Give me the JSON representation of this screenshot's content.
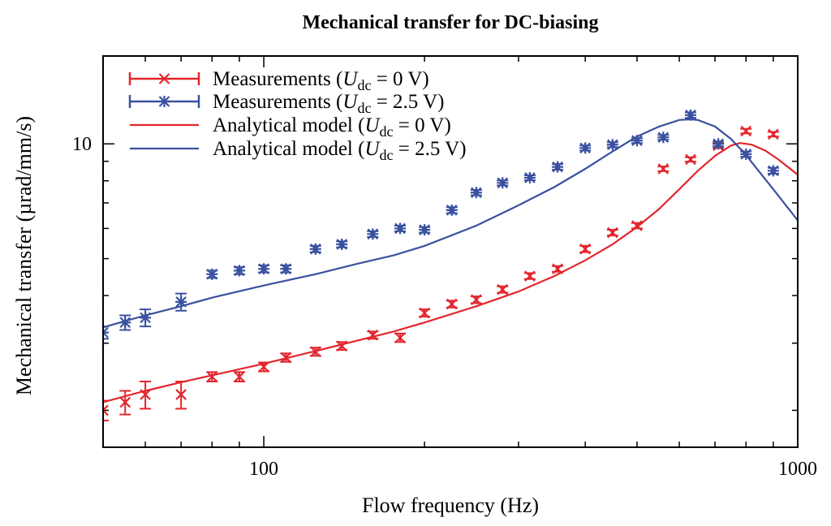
{
  "chart_data": {
    "type": "line",
    "title": "Mechanical transfer for DC-biasing",
    "xlabel": "Flow frequency (Hz)",
    "ylabel": "Mechanical transfer (µrad/mm/s)",
    "x_scale": "log",
    "y_scale": "log",
    "xlim": [
      50,
      1000
    ],
    "ylim": [
      1.6,
      17
    ],
    "x_ticks": [
      {
        "value": 100,
        "label": "100"
      },
      {
        "value": 1000,
        "label": "1000"
      }
    ],
    "y_ticks": [
      {
        "value": 10,
        "label": "10"
      }
    ],
    "legend_position": "top-left",
    "legend_items": [
      {
        "prefix": "Measurements (",
        "var": "U",
        "sub": "dc",
        "suffix": " = 0 V)"
      },
      {
        "prefix": "Measurements (",
        "var": "U",
        "sub": "dc",
        "suffix": " = 2.5 V)"
      },
      {
        "prefix": "Analytical model (",
        "var": "U",
        "sub": "dc",
        "suffix": " = 0 V)"
      },
      {
        "prefix": "Analytical model (",
        "var": "U",
        "sub": "dc",
        "suffix": " = 2.5 V)"
      }
    ],
    "colors": {
      "red": "#e3262c",
      "blue": "#3a51a0"
    },
    "series": [
      {
        "kind": "measurement",
        "marker": "x",
        "color": "#e3262c",
        "x": [
          50,
          55,
          60,
          70,
          80,
          90,
          100,
          110,
          125,
          140,
          160,
          180,
          200,
          225,
          250,
          280,
          315,
          355,
          400,
          450,
          500,
          560,
          630,
          710,
          800,
          900
        ],
        "y": [
          2.0,
          2.1,
          2.2,
          2.2,
          2.45,
          2.45,
          2.6,
          2.75,
          2.85,
          2.95,
          3.15,
          3.1,
          3.6,
          3.8,
          3.9,
          4.15,
          4.5,
          4.7,
          5.3,
          5.85,
          6.1,
          8.6,
          9.1,
          9.9,
          10.8,
          10.6
        ],
        "err": [
          0.12,
          0.15,
          0.18,
          0.18,
          0.07,
          0.07,
          0.07,
          0.07,
          0.07,
          0.07,
          0.07,
          0.08,
          0.08,
          0.08,
          0.08,
          0.08,
          0.08,
          0.08,
          0.1,
          0.1,
          0.1,
          0.12,
          0.12,
          0.15,
          0.15,
          0.15
        ]
      },
      {
        "kind": "measurement",
        "marker": "star",
        "color": "#3a51a0",
        "x": [
          50,
          55,
          60,
          70,
          80,
          90,
          100,
          110,
          125,
          140,
          160,
          180,
          200,
          225,
          250,
          280,
          315,
          355,
          400,
          450,
          500,
          560,
          630,
          710,
          800,
          900
        ],
        "y": [
          3.2,
          3.4,
          3.5,
          3.85,
          4.55,
          4.65,
          4.7,
          4.7,
          5.3,
          5.45,
          5.8,
          6.0,
          5.95,
          6.7,
          7.45,
          7.9,
          8.15,
          8.7,
          9.75,
          9.95,
          10.2,
          10.4,
          11.9,
          10.0,
          9.4,
          8.5
        ],
        "err": [
          0.12,
          0.15,
          0.18,
          0.2,
          0.1,
          0.1,
          0.1,
          0.1,
          0.1,
          0.1,
          0.1,
          0.1,
          0.1,
          0.12,
          0.12,
          0.12,
          0.12,
          0.15,
          0.15,
          0.15,
          0.15,
          0.15,
          0.2,
          0.15,
          0.15,
          0.15
        ]
      },
      {
        "kind": "model",
        "color": "#e3262c",
        "x": [
          50,
          60,
          70,
          80,
          100,
          125,
          150,
          175,
          200,
          250,
          300,
          350,
          400,
          450,
          500,
          550,
          600,
          650,
          700,
          750,
          780,
          820,
          870,
          920,
          1000
        ],
        "y": [
          2.1,
          2.25,
          2.37,
          2.47,
          2.65,
          2.86,
          3.05,
          3.22,
          3.4,
          3.75,
          4.1,
          4.5,
          4.95,
          5.45,
          6.05,
          6.75,
          7.6,
          8.5,
          9.3,
          9.9,
          10.05,
          9.95,
          9.6,
          9.1,
          8.3
        ]
      },
      {
        "kind": "model",
        "color": "#3a51a0",
        "x": [
          50,
          60,
          70,
          80,
          100,
          125,
          150,
          175,
          200,
          250,
          300,
          350,
          400,
          450,
          500,
          550,
          600,
          630,
          650,
          700,
          750,
          800,
          850,
          900,
          1000
        ],
        "y": [
          3.3,
          3.55,
          3.75,
          3.95,
          4.25,
          4.55,
          4.85,
          5.1,
          5.4,
          6.1,
          6.9,
          7.7,
          8.6,
          9.55,
          10.45,
          11.1,
          11.55,
          11.6,
          11.55,
          11.1,
          10.3,
          9.35,
          8.4,
          7.6,
          6.3
        ]
      }
    ]
  }
}
